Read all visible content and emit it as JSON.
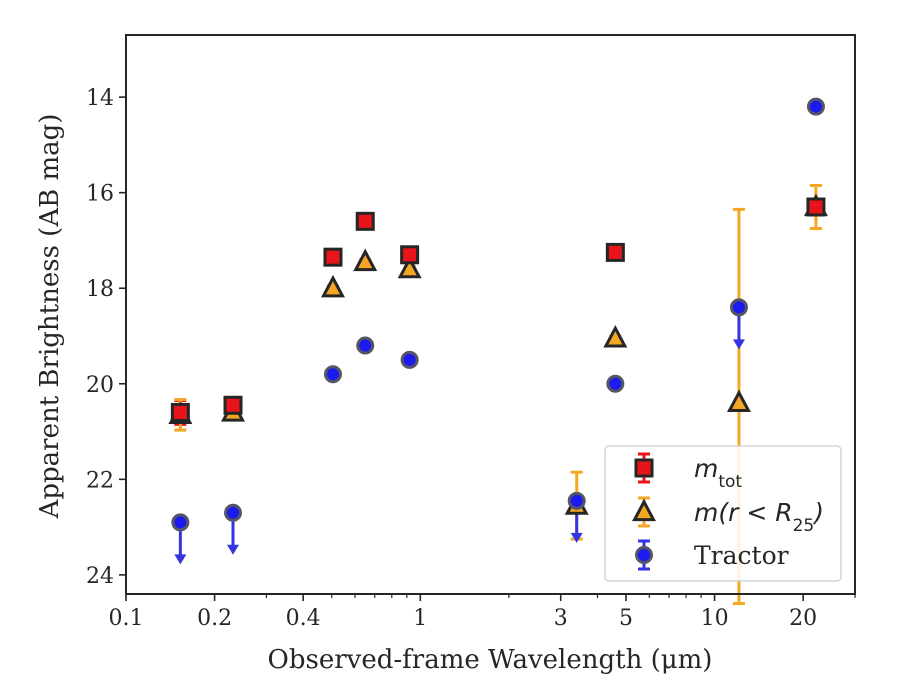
{
  "chart_data": {
    "type": "scatter",
    "xlabel": "Observed-frame Wavelength (μm)",
    "ylabel": "Apparent Brightness (AB mag)",
    "x_scale": "log",
    "xlim": [
      0.1,
      30
    ],
    "ylim": [
      24.4,
      12.7
    ],
    "y_inverted": true,
    "x_ticks": [
      {
        "value": 0.1,
        "label": "0.1"
      },
      {
        "value": 0.2,
        "label": "0.2"
      },
      {
        "value": 0.4,
        "label": "0.4"
      },
      {
        "value": 1,
        "label": "1"
      },
      {
        "value": 3,
        "label": "3"
      },
      {
        "value": 5,
        "label": "5"
      },
      {
        "value": 10,
        "label": "10"
      },
      {
        "value": 20,
        "label": "20"
      }
    ],
    "y_ticks": [
      {
        "value": 14,
        "label": "14"
      },
      {
        "value": 16,
        "label": "16"
      },
      {
        "value": 18,
        "label": "18"
      },
      {
        "value": 20,
        "label": "20"
      },
      {
        "value": 22,
        "label": "22"
      },
      {
        "value": 24,
        "label": "24"
      }
    ],
    "legend_position": "lower right",
    "series": [
      {
        "name": "m_tot",
        "legend_main": "m",
        "legend_sub": "tot",
        "marker": "square",
        "color": "#e8141a",
        "points": [
          {
            "x": 0.153,
            "y": 20.6,
            "err": 0.25
          },
          {
            "x": 0.231,
            "y": 20.45,
            "err": 0.1
          },
          {
            "x": 0.505,
            "y": 17.35,
            "err": 0.05
          },
          {
            "x": 0.65,
            "y": 16.6,
            "err": 0.05
          },
          {
            "x": 0.92,
            "y": 17.3,
            "err": 0.05
          },
          {
            "x": 4.6,
            "y": 17.25,
            "err": 0.05
          },
          {
            "x": 22.1,
            "y": 16.3,
            "err": 0.05
          }
        ]
      },
      {
        "name": "m(r < R25)",
        "legend_main": "m(r < R",
        "legend_sub": "25",
        "legend_tail": ")",
        "marker": "triangle",
        "color": "#f5a623",
        "points": [
          {
            "x": 0.153,
            "y": 20.65,
            "err": 0.32
          },
          {
            "x": 0.231,
            "y": 20.6,
            "err": 0.05
          },
          {
            "x": 0.505,
            "y": 18.0,
            "err": 0.05
          },
          {
            "x": 0.65,
            "y": 17.45,
            "err": 0.05
          },
          {
            "x": 0.92,
            "y": 17.6,
            "err": 0.05
          },
          {
            "x": 3.4,
            "y": 22.55,
            "err": 0.7
          },
          {
            "x": 4.6,
            "y": 19.05,
            "err": 0.05
          },
          {
            "x": 12.1,
            "y": 20.4,
            "err_low": 4.05,
            "err_high": 4.2
          },
          {
            "x": 22.1,
            "y": 16.3,
            "err": 0.45
          }
        ]
      },
      {
        "name": "Tractor",
        "legend_main": "Tractor",
        "marker": "circle",
        "color": "#1b1bf0",
        "points": [
          {
            "x": 0.153,
            "y": 22.9,
            "upper_limit": true
          },
          {
            "x": 0.231,
            "y": 22.7,
            "upper_limit": true
          },
          {
            "x": 0.505,
            "y": 19.8
          },
          {
            "x": 0.65,
            "y": 19.2
          },
          {
            "x": 0.92,
            "y": 19.5
          },
          {
            "x": 3.4,
            "y": 22.45,
            "upper_limit": true
          },
          {
            "x": 4.6,
            "y": 20.0
          },
          {
            "x": 12.1,
            "y": 18.4,
            "upper_limit": true
          },
          {
            "x": 22.1,
            "y": 14.2
          }
        ]
      }
    ],
    "colors": {
      "axis": "#262626",
      "square_fill": "#e8141a",
      "triangle_fill": "#f5a623",
      "circle_fill": "#1b1bf0",
      "arrow": "#3434e0",
      "errbar_square": "#e8141a",
      "errbar_triangle": "#f5a623",
      "errbar_circle": "#3434e0"
    }
  }
}
